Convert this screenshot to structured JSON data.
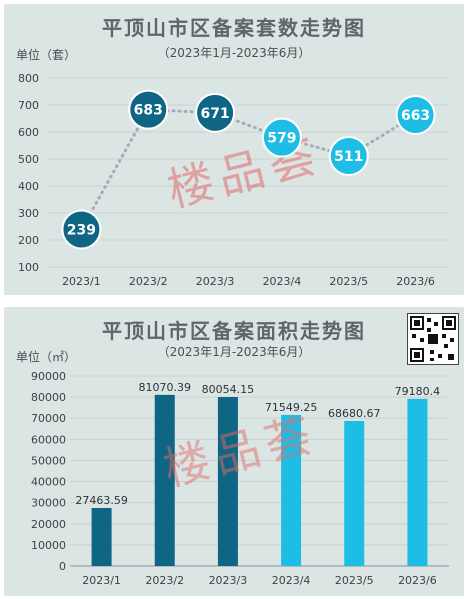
{
  "colors": {
    "dark": "#0f6584",
    "light": "#1dbde6",
    "panel": "#dbe5e3",
    "watermark": "#e36a6a"
  },
  "watermark": "楼品荟",
  "chart_data": [
    {
      "type": "line",
      "title": "平顶山市区备案套数走势图",
      "subtitle": "（2023年1月-2023年6月）",
      "ylabel": "单位（套）",
      "categories": [
        "2023/1",
        "2023/2",
        "2023/3",
        "2023/4",
        "2023/5",
        "2023/6"
      ],
      "values": [
        239,
        683,
        671,
        579,
        511,
        663
      ],
      "yticks": [
        100,
        200,
        300,
        400,
        500,
        600,
        700,
        800
      ],
      "ylim": [
        100,
        800
      ],
      "grid": true
    },
    {
      "type": "bar",
      "title": "平顶山市区备案面积走势图",
      "subtitle": "（2023年1月-2023年6月）",
      "ylabel": "单位（㎡）",
      "categories": [
        "2023/1",
        "2023/2",
        "2023/3",
        "2023/4",
        "2023/5",
        "2023/6"
      ],
      "values": [
        27463.59,
        81070.39,
        80054.15,
        71549.25,
        68680.67,
        79180.4
      ],
      "labels": [
        "27463.59",
        "81070.39",
        "80054.15",
        "71549.25",
        "68680.67",
        "79180.4"
      ],
      "yticks": [
        0,
        10000,
        20000,
        30000,
        40000,
        50000,
        60000,
        70000,
        80000,
        90000
      ],
      "ylim": [
        0,
        90000
      ],
      "grid": true
    }
  ]
}
